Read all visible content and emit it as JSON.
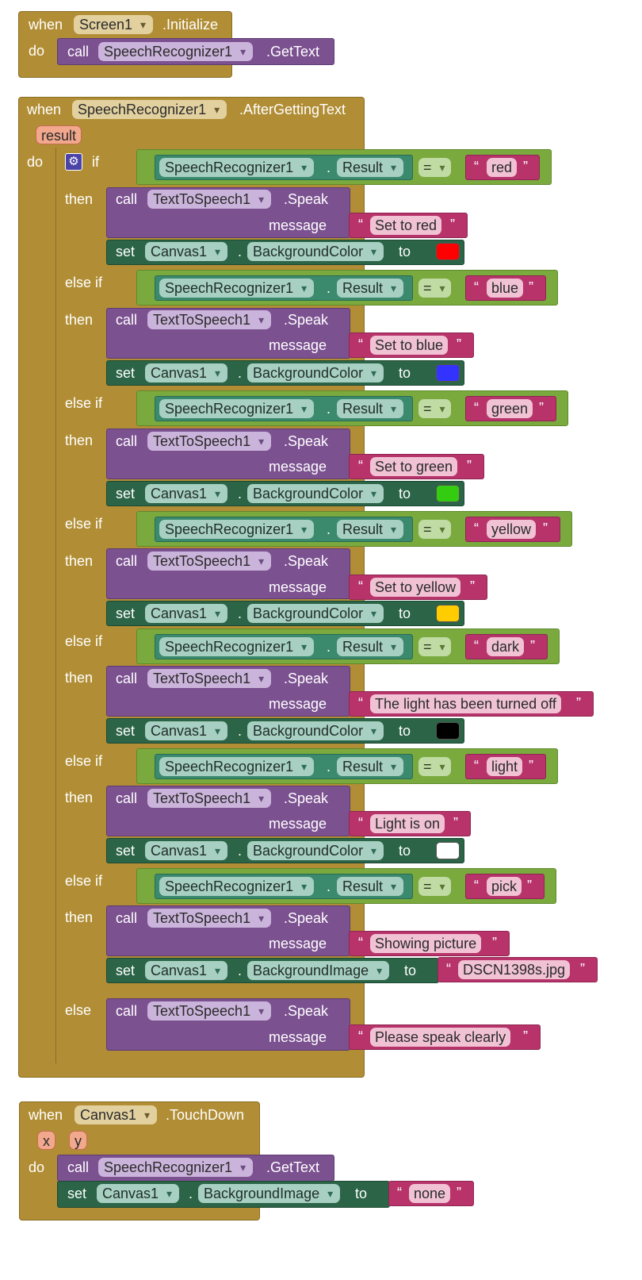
{
  "kw": {
    "when": "when",
    "do": "do",
    "call": "call",
    "set": "set",
    "to": "to",
    "if": "if",
    "then": "then",
    "else_if": "else if",
    "else": "else",
    "message": "message",
    "dot": ".",
    "eq": "=",
    "quote_open": "“",
    "quote_close": "”"
  },
  "event1": {
    "component": "Screen1",
    "event": ".Initialize",
    "call_component": "SpeechRecognizer1",
    "call_method": ".GetText"
  },
  "event2": {
    "component": "SpeechRecognizer1",
    "event": ".AfterGettingText",
    "param": "result",
    "cond_component": "SpeechRecognizer1",
    "cond_prop": "Result",
    "speak_component": "TextToSpeech1",
    "speak_method": ".Speak",
    "set_component": "Canvas1",
    "set_prop_color": "BackgroundColor",
    "set_prop_image": "BackgroundImage",
    "branches": [
      {
        "value": "red",
        "message": "Set to red",
        "color": "#ff0000"
      },
      {
        "value": "blue",
        "message": "Set to blue",
        "color": "#3333ff"
      },
      {
        "value": "green",
        "message": "Set to green",
        "color": "#33cc11"
      },
      {
        "value": "yellow",
        "message": "Set to yellow",
        "color": "#ffcc00"
      },
      {
        "value": "dark",
        "message": "The light has been turned off",
        "color": "#000000"
      },
      {
        "value": "light",
        "message": "Light is on",
        "color": "#ffffff"
      },
      {
        "value": "pick",
        "message": "Showing picture",
        "image": "DSCN1398s.jpg"
      }
    ],
    "else_message": "Please speak clearly"
  },
  "event3": {
    "component": "Canvas1",
    "event": ".TouchDown",
    "param_x": "x",
    "param_y": "y",
    "call_component": "SpeechRecognizer1",
    "call_method": ".GetText",
    "set_component": "Canvas1",
    "set_prop": "BackgroundImage",
    "set_value": "none"
  },
  "colors": {
    "event": "#b18e35",
    "compare": "#7aaa3e",
    "property": "#3b8a6e",
    "call": "#7b5190",
    "setter": "#2b6447",
    "string": "#b7336a"
  }
}
